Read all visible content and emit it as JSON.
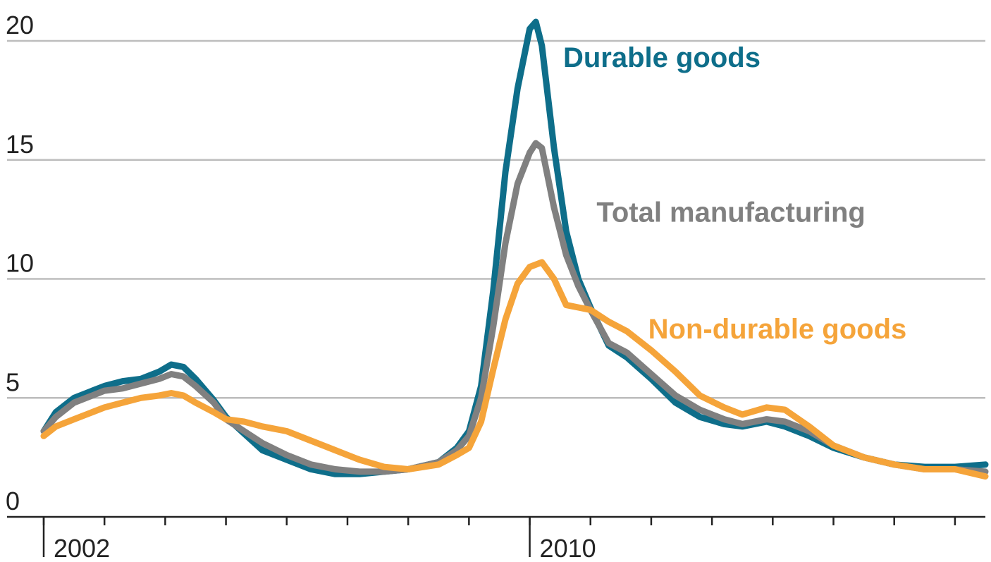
{
  "chart_data": {
    "type": "line",
    "title": "",
    "xlabel": "",
    "ylabel": "",
    "xlim": [
      2001,
      2016.5
    ],
    "ylim": [
      0,
      20
    ],
    "yticks": [
      0,
      5,
      10,
      15,
      20
    ],
    "ytick_labels": [
      "0",
      "5",
      "10",
      "15",
      "20"
    ],
    "x_tick_years": [
      2001,
      2002,
      2003,
      2004,
      2005,
      2006,
      2007,
      2008,
      2009,
      2010,
      2011,
      2012,
      2013,
      2014,
      2015,
      2016
    ],
    "x_labels": [
      {
        "year": 2002,
        "text": "2002"
      },
      {
        "year": 2010,
        "text": "2010"
      }
    ],
    "x_label_markers": [
      2001,
      2009
    ],
    "grid": true,
    "series": [
      {
        "name": "Durable goods",
        "color": "#0e6e8a",
        "label_x": 2009.55,
        "label_y": 18.9,
        "points": [
          [
            2001.0,
            3.6
          ],
          [
            2001.2,
            4.4
          ],
          [
            2001.5,
            5.0
          ],
          [
            2001.8,
            5.3
          ],
          [
            2002.0,
            5.5
          ],
          [
            2002.3,
            5.7
          ],
          [
            2002.6,
            5.8
          ],
          [
            2002.9,
            6.1
          ],
          [
            2003.1,
            6.4
          ],
          [
            2003.3,
            6.3
          ],
          [
            2003.5,
            5.8
          ],
          [
            2003.8,
            4.9
          ],
          [
            2004.0,
            4.2
          ],
          [
            2004.3,
            3.5
          ],
          [
            2004.6,
            2.8
          ],
          [
            2005.0,
            2.4
          ],
          [
            2005.4,
            2.0
          ],
          [
            2005.8,
            1.8
          ],
          [
            2006.2,
            1.8
          ],
          [
            2006.6,
            1.9
          ],
          [
            2007.0,
            2.0
          ],
          [
            2007.5,
            2.3
          ],
          [
            2007.8,
            2.9
          ],
          [
            2008.0,
            3.6
          ],
          [
            2008.2,
            5.5
          ],
          [
            2008.4,
            9.5
          ],
          [
            2008.6,
            14.5
          ],
          [
            2008.8,
            18.0
          ],
          [
            2009.0,
            20.5
          ],
          [
            2009.1,
            20.8
          ],
          [
            2009.2,
            19.8
          ],
          [
            2009.4,
            15.5
          ],
          [
            2009.6,
            12.0
          ],
          [
            2009.8,
            10.0
          ],
          [
            2010.0,
            8.8
          ],
          [
            2010.3,
            7.2
          ],
          [
            2010.6,
            6.7
          ],
          [
            2011.0,
            5.8
          ],
          [
            2011.4,
            4.8
          ],
          [
            2011.8,
            4.2
          ],
          [
            2012.2,
            3.9
          ],
          [
            2012.5,
            3.8
          ],
          [
            2012.9,
            4.0
          ],
          [
            2013.2,
            3.8
          ],
          [
            2013.6,
            3.4
          ],
          [
            2014.0,
            2.9
          ],
          [
            2014.5,
            2.5
          ],
          [
            2015.0,
            2.2
          ],
          [
            2015.5,
            2.1
          ],
          [
            2016.0,
            2.1
          ],
          [
            2016.5,
            2.2
          ]
        ]
      },
      {
        "name": "Total manufacturing",
        "color": "#808080",
        "label_x": 2010.1,
        "label_y": 12.4,
        "points": [
          [
            2001.0,
            3.6
          ],
          [
            2001.2,
            4.2
          ],
          [
            2001.5,
            4.8
          ],
          [
            2001.8,
            5.1
          ],
          [
            2002.0,
            5.3
          ],
          [
            2002.3,
            5.4
          ],
          [
            2002.6,
            5.6
          ],
          [
            2002.9,
            5.8
          ],
          [
            2003.1,
            6.0
          ],
          [
            2003.3,
            5.9
          ],
          [
            2003.5,
            5.5
          ],
          [
            2003.8,
            4.8
          ],
          [
            2004.0,
            4.1
          ],
          [
            2004.3,
            3.6
          ],
          [
            2004.6,
            3.1
          ],
          [
            2005.0,
            2.6
          ],
          [
            2005.4,
            2.2
          ],
          [
            2005.8,
            2.0
          ],
          [
            2006.2,
            1.9
          ],
          [
            2006.6,
            1.9
          ],
          [
            2007.0,
            2.0
          ],
          [
            2007.5,
            2.3
          ],
          [
            2007.8,
            2.8
          ],
          [
            2008.0,
            3.4
          ],
          [
            2008.2,
            5.0
          ],
          [
            2008.4,
            8.0
          ],
          [
            2008.6,
            11.5
          ],
          [
            2008.8,
            14.0
          ],
          [
            2009.0,
            15.3
          ],
          [
            2009.1,
            15.7
          ],
          [
            2009.2,
            15.5
          ],
          [
            2009.4,
            13.0
          ],
          [
            2009.6,
            11.0
          ],
          [
            2009.8,
            9.7
          ],
          [
            2010.0,
            8.7
          ],
          [
            2010.3,
            7.3
          ],
          [
            2010.6,
            6.9
          ],
          [
            2011.0,
            6.0
          ],
          [
            2011.4,
            5.1
          ],
          [
            2011.8,
            4.5
          ],
          [
            2012.2,
            4.1
          ],
          [
            2012.5,
            3.9
          ],
          [
            2012.9,
            4.1
          ],
          [
            2013.2,
            4.0
          ],
          [
            2013.6,
            3.6
          ],
          [
            2014.0,
            3.0
          ],
          [
            2014.5,
            2.5
          ],
          [
            2015.0,
            2.2
          ],
          [
            2015.5,
            2.0
          ],
          [
            2016.0,
            2.0
          ],
          [
            2016.5,
            1.9
          ]
        ]
      },
      {
        "name": "Non-durable goods",
        "color": "#f5a43a",
        "label_x": 2010.95,
        "label_y": 7.5,
        "points": [
          [
            2001.0,
            3.4
          ],
          [
            2001.2,
            3.8
          ],
          [
            2001.5,
            4.1
          ],
          [
            2001.8,
            4.4
          ],
          [
            2002.0,
            4.6
          ],
          [
            2002.3,
            4.8
          ],
          [
            2002.6,
            5.0
          ],
          [
            2002.9,
            5.1
          ],
          [
            2003.1,
            5.2
          ],
          [
            2003.3,
            5.1
          ],
          [
            2003.5,
            4.8
          ],
          [
            2003.8,
            4.4
          ],
          [
            2004.0,
            4.1
          ],
          [
            2004.3,
            4.0
          ],
          [
            2004.6,
            3.8
          ],
          [
            2005.0,
            3.6
          ],
          [
            2005.4,
            3.2
          ],
          [
            2005.8,
            2.8
          ],
          [
            2006.2,
            2.4
          ],
          [
            2006.6,
            2.1
          ],
          [
            2007.0,
            2.0
          ],
          [
            2007.5,
            2.2
          ],
          [
            2007.8,
            2.6
          ],
          [
            2008.0,
            2.9
          ],
          [
            2008.2,
            4.0
          ],
          [
            2008.4,
            6.2
          ],
          [
            2008.6,
            8.3
          ],
          [
            2008.8,
            9.8
          ],
          [
            2009.0,
            10.5
          ],
          [
            2009.2,
            10.7
          ],
          [
            2009.4,
            10.0
          ],
          [
            2009.6,
            8.9
          ],
          [
            2009.8,
            8.8
          ],
          [
            2010.0,
            8.7
          ],
          [
            2010.3,
            8.2
          ],
          [
            2010.6,
            7.8
          ],
          [
            2011.0,
            7.0
          ],
          [
            2011.4,
            6.1
          ],
          [
            2011.8,
            5.1
          ],
          [
            2012.2,
            4.6
          ],
          [
            2012.5,
            4.3
          ],
          [
            2012.9,
            4.6
          ],
          [
            2013.2,
            4.5
          ],
          [
            2013.6,
            3.8
          ],
          [
            2014.0,
            3.0
          ],
          [
            2014.5,
            2.5
          ],
          [
            2015.0,
            2.2
          ],
          [
            2015.5,
            2.0
          ],
          [
            2016.0,
            2.0
          ],
          [
            2016.5,
            1.7
          ]
        ]
      }
    ]
  }
}
